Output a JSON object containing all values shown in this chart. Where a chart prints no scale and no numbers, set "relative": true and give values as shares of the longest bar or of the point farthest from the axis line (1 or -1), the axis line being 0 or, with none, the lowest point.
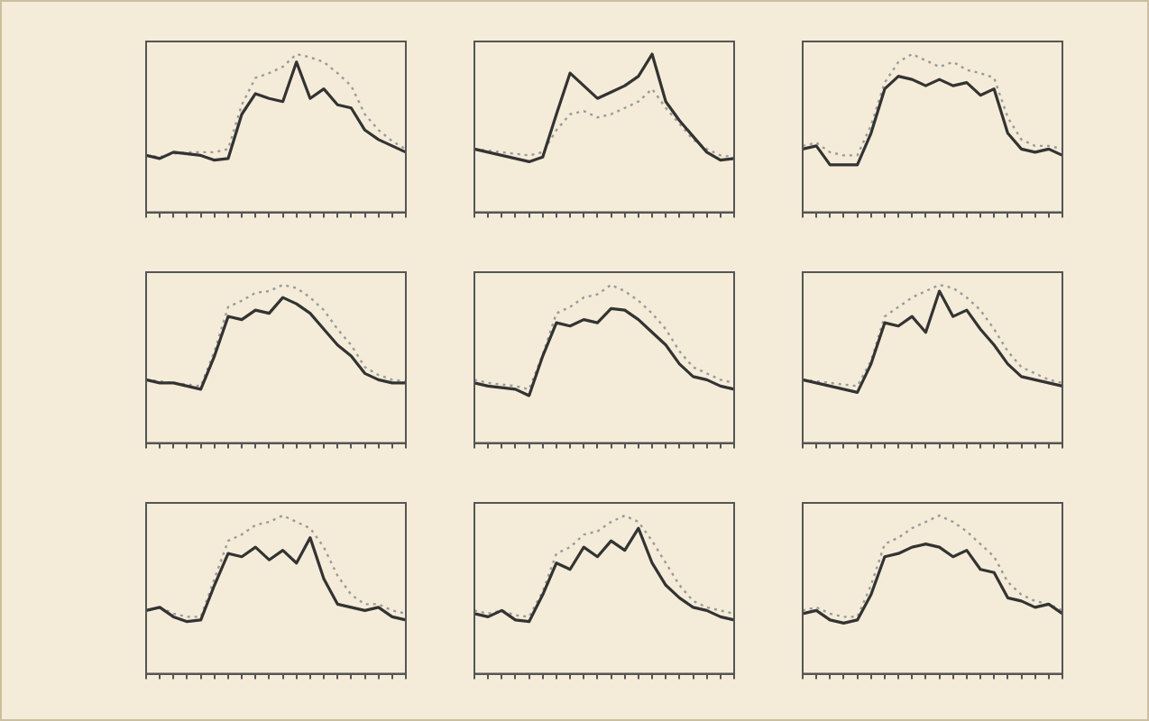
{
  "chart_data": [
    {
      "type": "line",
      "relative": true,
      "grid": false,
      "legend": false,
      "categories": [
        null,
        null,
        null,
        null,
        null,
        null,
        null,
        null,
        null,
        null,
        null,
        null,
        null,
        null,
        null,
        null,
        null,
        null,
        null,
        null
      ],
      "series": [
        {
          "color": "#333333",
          "line_style": "solid",
          "values": [
            0.36,
            0.34,
            0.38,
            0.37,
            0.36,
            0.33,
            0.34,
            0.62,
            0.75,
            0.72,
            0.7,
            0.95,
            0.72,
            0.78,
            0.68,
            0.66,
            0.52,
            0.46,
            0.42,
            0.38
          ]
        },
        {
          "color": "#9a9a9a",
          "line_style": "dotted",
          "values": [
            0.36,
            0.35,
            0.37,
            0.38,
            0.38,
            0.38,
            0.4,
            0.68,
            0.85,
            0.88,
            0.92,
            1,
            0.98,
            0.95,
            0.88,
            0.8,
            0.62,
            0.52,
            0.45,
            0.4
          ]
        }
      ]
    },
    {
      "type": "line",
      "relative": true,
      "grid": false,
      "legend": false,
      "categories": [
        null,
        null,
        null,
        null,
        null,
        null,
        null,
        null,
        null,
        null,
        null,
        null,
        null,
        null,
        null,
        null,
        null,
        null,
        null,
        null
      ],
      "series": [
        {
          "color": "#333333",
          "line_style": "solid",
          "values": [
            0.4,
            0.38,
            0.36,
            0.34,
            0.32,
            0.35,
            0.62,
            0.88,
            0.8,
            0.72,
            0.76,
            0.8,
            0.86,
            1,
            0.7,
            0.58,
            0.48,
            0.38,
            0.33,
            0.34
          ]
        },
        {
          "color": "#9a9a9a",
          "line_style": "dotted",
          "values": [
            0.4,
            0.39,
            0.38,
            0.37,
            0.36,
            0.38,
            0.52,
            0.62,
            0.64,
            0.6,
            0.62,
            0.66,
            0.7,
            0.78,
            0.66,
            0.56,
            0.46,
            0.4,
            0.36,
            0.35
          ]
        }
      ]
    },
    {
      "type": "line",
      "relative": true,
      "grid": false,
      "legend": false,
      "categories": [
        null,
        null,
        null,
        null,
        null,
        null,
        null,
        null,
        null,
        null,
        null,
        null,
        null,
        null,
        null,
        null,
        null,
        null,
        null,
        null
      ],
      "series": [
        {
          "color": "#333333",
          "line_style": "solid",
          "values": [
            0.4,
            0.42,
            0.3,
            0.3,
            0.3,
            0.5,
            0.78,
            0.86,
            0.84,
            0.8,
            0.84,
            0.8,
            0.82,
            0.74,
            0.78,
            0.5,
            0.4,
            0.38,
            0.4,
            0.36
          ]
        },
        {
          "color": "#9a9a9a",
          "line_style": "dotted",
          "values": [
            0.42,
            0.44,
            0.38,
            0.36,
            0.36,
            0.55,
            0.82,
            0.95,
            1,
            0.96,
            0.92,
            0.95,
            0.9,
            0.88,
            0.85,
            0.6,
            0.46,
            0.42,
            0.42,
            0.4
          ]
        }
      ]
    },
    {
      "type": "line",
      "relative": true,
      "grid": false,
      "legend": false,
      "categories": [
        null,
        null,
        null,
        null,
        null,
        null,
        null,
        null,
        null,
        null,
        null,
        null,
        null,
        null,
        null,
        null,
        null,
        null,
        null,
        null
      ],
      "series": [
        {
          "color": "#333333",
          "line_style": "solid",
          "values": [
            0.4,
            0.38,
            0.38,
            0.36,
            0.34,
            0.55,
            0.8,
            0.78,
            0.84,
            0.82,
            0.92,
            0.88,
            0.82,
            0.72,
            0.62,
            0.55,
            0.44,
            0.4,
            0.38,
            0.38
          ]
        },
        {
          "color": "#9a9a9a",
          "line_style": "dotted",
          "values": [
            0.4,
            0.39,
            0.38,
            0.37,
            0.36,
            0.58,
            0.86,
            0.9,
            0.95,
            0.96,
            1,
            0.98,
            0.92,
            0.84,
            0.72,
            0.62,
            0.48,
            0.43,
            0.4,
            0.39
          ]
        }
      ]
    },
    {
      "type": "line",
      "relative": true,
      "grid": false,
      "legend": false,
      "categories": [
        null,
        null,
        null,
        null,
        null,
        null,
        null,
        null,
        null,
        null,
        null,
        null,
        null,
        null,
        null,
        null,
        null,
        null,
        null,
        null
      ],
      "series": [
        {
          "color": "#333333",
          "line_style": "solid",
          "values": [
            0.38,
            0.36,
            0.35,
            0.34,
            0.3,
            0.55,
            0.76,
            0.74,
            0.78,
            0.76,
            0.85,
            0.84,
            0.78,
            0.7,
            0.62,
            0.5,
            0.42,
            0.4,
            0.36,
            0.34
          ]
        },
        {
          "color": "#9a9a9a",
          "line_style": "dotted",
          "values": [
            0.4,
            0.38,
            0.37,
            0.36,
            0.34,
            0.56,
            0.82,
            0.86,
            0.92,
            0.94,
            1,
            0.96,
            0.9,
            0.82,
            0.72,
            0.58,
            0.48,
            0.44,
            0.4,
            0.38
          ]
        }
      ]
    },
    {
      "type": "line",
      "relative": true,
      "grid": false,
      "legend": false,
      "categories": [
        null,
        null,
        null,
        null,
        null,
        null,
        null,
        null,
        null,
        null,
        null,
        null,
        null,
        null,
        null,
        null,
        null,
        null,
        null,
        null
      ],
      "series": [
        {
          "color": "#333333",
          "line_style": "solid",
          "values": [
            0.4,
            0.38,
            0.36,
            0.34,
            0.32,
            0.5,
            0.76,
            0.74,
            0.8,
            0.7,
            0.96,
            0.8,
            0.84,
            0.72,
            0.62,
            0.5,
            0.42,
            0.4,
            0.38,
            0.36
          ]
        },
        {
          "color": "#9a9a9a",
          "line_style": "dotted",
          "values": [
            0.4,
            0.39,
            0.38,
            0.37,
            0.36,
            0.52,
            0.8,
            0.86,
            0.92,
            0.96,
            1,
            0.98,
            0.92,
            0.84,
            0.72,
            0.58,
            0.48,
            0.44,
            0.4,
            0.38
          ]
        }
      ]
    },
    {
      "type": "line",
      "relative": true,
      "grid": false,
      "legend": false,
      "categories": [
        null,
        null,
        null,
        null,
        null,
        null,
        null,
        null,
        null,
        null,
        null,
        null,
        null,
        null,
        null,
        null,
        null,
        null,
        null,
        null
      ],
      "series": [
        {
          "color": "#333333",
          "line_style": "solid",
          "values": [
            0.4,
            0.42,
            0.36,
            0.33,
            0.34,
            0.56,
            0.76,
            0.74,
            0.8,
            0.72,
            0.78,
            0.7,
            0.86,
            0.6,
            0.44,
            0.42,
            0.4,
            0.42,
            0.36,
            0.34
          ]
        },
        {
          "color": "#9a9a9a",
          "line_style": "dotted",
          "values": [
            0.4,
            0.42,
            0.38,
            0.36,
            0.36,
            0.6,
            0.84,
            0.88,
            0.94,
            0.96,
            1,
            0.96,
            0.92,
            0.8,
            0.62,
            0.5,
            0.44,
            0.44,
            0.4,
            0.38
          ]
        }
      ]
    },
    {
      "type": "line",
      "relative": true,
      "grid": false,
      "legend": false,
      "categories": [
        null,
        null,
        null,
        null,
        null,
        null,
        null,
        null,
        null,
        null,
        null,
        null,
        null,
        null,
        null,
        null,
        null,
        null,
        null,
        null
      ],
      "series": [
        {
          "color": "#333333",
          "line_style": "solid",
          "values": [
            0.38,
            0.36,
            0.4,
            0.34,
            0.33,
            0.5,
            0.7,
            0.66,
            0.8,
            0.74,
            0.84,
            0.78,
            0.92,
            0.7,
            0.56,
            0.48,
            0.42,
            0.4,
            0.36,
            0.34
          ]
        },
        {
          "color": "#9a9a9a",
          "line_style": "dotted",
          "values": [
            0.4,
            0.38,
            0.4,
            0.37,
            0.36,
            0.52,
            0.76,
            0.8,
            0.88,
            0.9,
            0.96,
            1,
            0.96,
            0.84,
            0.7,
            0.56,
            0.46,
            0.42,
            0.4,
            0.38
          ]
        }
      ]
    },
    {
      "type": "line",
      "relative": true,
      "grid": false,
      "legend": false,
      "categories": [
        null,
        null,
        null,
        null,
        null,
        null,
        null,
        null,
        null,
        null,
        null,
        null,
        null,
        null,
        null,
        null,
        null,
        null,
        null,
        null
      ],
      "series": [
        {
          "color": "#333333",
          "line_style": "solid",
          "values": [
            0.38,
            0.4,
            0.34,
            0.32,
            0.34,
            0.5,
            0.74,
            0.76,
            0.8,
            0.82,
            0.8,
            0.74,
            0.78,
            0.66,
            0.64,
            0.48,
            0.46,
            0.42,
            0.44,
            0.38
          ]
        },
        {
          "color": "#9a9a9a",
          "line_style": "dotted",
          "values": [
            0.4,
            0.42,
            0.38,
            0.36,
            0.36,
            0.56,
            0.82,
            0.86,
            0.92,
            0.96,
            1,
            0.96,
            0.9,
            0.82,
            0.74,
            0.58,
            0.5,
            0.46,
            0.44,
            0.4
          ]
        }
      ]
    }
  ]
}
